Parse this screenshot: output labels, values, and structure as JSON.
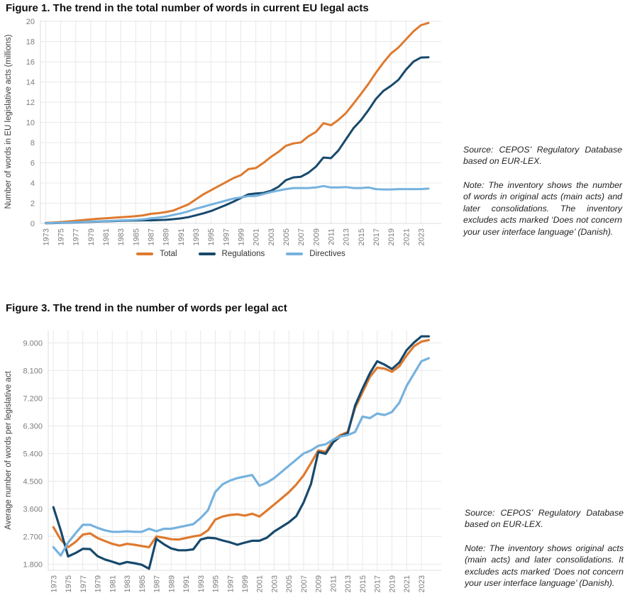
{
  "figures": [
    {
      "title": "Figure 1. The trend in the total number of words in current EU legal acts",
      "source": "Source: CEPOS’ Regulatory Database based on EUR-LEX.",
      "note": "Note: The inventory shows the number of words in original acts (main acts) and later consolidations. The inventory excludes acts marked ‘Does not concern your user interface language’ (Danish)."
    },
    {
      "title": "Figure 3. The trend in the number of words per legal act",
      "source": "Source: CEPOS’ Regulatory Database based on EUR-LEX.",
      "note": "Note: The inventory shows original acts (main acts) and later consolidations. It excludes acts marked ‘Does not concern your user interface language’ (Danish)."
    }
  ],
  "chart_data": [
    {
      "type": "line",
      "title": "Figure 1. The trend in the total number of words in current EU legal acts",
      "xlabel": "",
      "ylabel": "Number of words in EU legislative acts (millions)",
      "x_start_year": 1973,
      "x_end_year": 2024,
      "xlim": [
        1972.3,
        2025.7
      ],
      "ylim": [
        0,
        20.15
      ],
      "grid": true,
      "legend_position": "bottom",
      "xtick_labels": [
        "1973",
        "1975",
        "1977",
        "1979",
        "1981",
        "1983",
        "1985",
        "1987",
        "1989",
        "1991",
        "1993",
        "1995",
        "1997",
        "1999",
        "2001",
        "2003",
        "2005",
        "2007",
        "2009",
        "2011",
        "2013",
        "2015",
        "2017",
        "2019",
        "2021",
        "2023"
      ],
      "ytick_values": [
        0,
        2,
        4,
        6,
        8,
        10,
        12,
        14,
        16,
        18,
        20
      ],
      "ytick_labels": [
        "0",
        "2",
        "4",
        "6",
        "8",
        "10",
        "12",
        "14",
        "16",
        "18",
        "20"
      ],
      "series": [
        {
          "name": "Total",
          "color": "#DE7A2F",
          "values": [
            0.05,
            0.09,
            0.13,
            0.19,
            0.26,
            0.33,
            0.4,
            0.46,
            0.51,
            0.56,
            0.61,
            0.66,
            0.72,
            0.8,
            0.95,
            1.02,
            1.12,
            1.28,
            1.58,
            1.88,
            2.38,
            2.88,
            3.28,
            3.68,
            4.08,
            4.48,
            4.78,
            5.38,
            5.48,
            5.98,
            6.58,
            7.08,
            7.68,
            7.92,
            8.02,
            8.62,
            9.05,
            9.92,
            9.72,
            10.25,
            10.92,
            11.85,
            12.82,
            13.82,
            14.92,
            15.92,
            16.82,
            17.42,
            18.22,
            19.02,
            19.62,
            19.85
          ]
        },
        {
          "name": "Regulations",
          "color": "#17496C",
          "values": [
            0.02,
            0.03,
            0.05,
            0.07,
            0.1,
            0.13,
            0.16,
            0.18,
            0.21,
            0.23,
            0.26,
            0.28,
            0.29,
            0.31,
            0.31,
            0.33,
            0.36,
            0.42,
            0.5,
            0.62,
            0.8,
            1.0,
            1.22,
            1.52,
            1.82,
            2.15,
            2.52,
            2.88,
            2.96,
            3.02,
            3.22,
            3.62,
            4.28,
            4.56,
            4.62,
            5.02,
            5.62,
            6.52,
            6.46,
            7.22,
            8.32,
            9.42,
            10.22,
            11.22,
            12.32,
            13.12,
            13.62,
            14.22,
            15.22,
            16.02,
            16.42,
            16.45
          ]
        },
        {
          "name": "Directives",
          "color": "#76B2DE",
          "values": [
            0.02,
            0.04,
            0.06,
            0.09,
            0.12,
            0.15,
            0.18,
            0.21,
            0.24,
            0.27,
            0.3,
            0.32,
            0.35,
            0.4,
            0.5,
            0.58,
            0.68,
            0.84,
            1.0,
            1.2,
            1.45,
            1.65,
            1.86,
            2.06,
            2.26,
            2.46,
            2.58,
            2.7,
            2.72,
            2.9,
            3.1,
            3.26,
            3.4,
            3.5,
            3.5,
            3.5,
            3.56,
            3.7,
            3.56,
            3.56,
            3.6,
            3.5,
            3.5,
            3.56,
            3.4,
            3.36,
            3.36,
            3.4,
            3.4,
            3.4,
            3.4,
            3.45
          ]
        }
      ]
    },
    {
      "type": "line",
      "title": "Figure 3. The trend in the number of words per legal act",
      "xlabel": "",
      "ylabel": "Average number of words per legislative act",
      "x_start_year": 1973,
      "x_end_year": 2024,
      "xlim": [
        1972.3,
        2025.7
      ],
      "ylim": [
        1600,
        9400
      ],
      "grid": true,
      "legend_position": "none",
      "xtick_labels": [
        "1973",
        "1975",
        "1977",
        "1979",
        "1981",
        "1983",
        "1985",
        "1987",
        "1989",
        "1991",
        "1993",
        "1995",
        "1997",
        "1999",
        "2001",
        "2003",
        "2005",
        "2007",
        "2009",
        "2011",
        "2013",
        "2015",
        "2017",
        "2019",
        "2021",
        "2023"
      ],
      "ytick_values": [
        1800,
        2700,
        3600,
        4500,
        5400,
        6300,
        7200,
        8100,
        9000
      ],
      "ytick_labels": [
        "1.800",
        "2.700",
        "3.600",
        "4.500",
        "5.400",
        "6.300",
        "7.200",
        "8.100",
        "9.000"
      ],
      "series": [
        {
          "name": "Total",
          "color": "#DE7A2F",
          "values": [
            3000,
            2600,
            2350,
            2520,
            2760,
            2800,
            2650,
            2550,
            2460,
            2400,
            2460,
            2430,
            2390,
            2350,
            2700,
            2660,
            2610,
            2600,
            2650,
            2700,
            2740,
            2900,
            3250,
            3350,
            3400,
            3420,
            3380,
            3440,
            3350,
            3540,
            3740,
            3940,
            4140,
            4390,
            4690,
            5090,
            5500,
            5450,
            5840,
            6000,
            6100,
            6890,
            7390,
            7890,
            8190,
            8160,
            8060,
            8240,
            8590,
            8890,
            9040,
            9090
          ]
        },
        {
          "name": "Regulations",
          "color": "#17496C",
          "values": [
            3650,
            2900,
            2050,
            2160,
            2300,
            2290,
            2060,
            1950,
            1880,
            1800,
            1870,
            1830,
            1780,
            1650,
            2620,
            2450,
            2310,
            2250,
            2250,
            2280,
            2600,
            2660,
            2640,
            2570,
            2510,
            2430,
            2500,
            2560,
            2560,
            2660,
            2860,
            3010,
            3160,
            3360,
            3810,
            4410,
            5450,
            5390,
            5760,
            5960,
            6060,
            6960,
            7510,
            8010,
            8400,
            8290,
            8150,
            8360,
            8760,
            9010,
            9210,
            9210
          ]
        },
        {
          "name": "Directives",
          "color": "#76B2DE",
          "values": [
            2350,
            2080,
            2500,
            2800,
            3080,
            3080,
            2980,
            2900,
            2850,
            2850,
            2870,
            2850,
            2850,
            2950,
            2870,
            2950,
            2950,
            3000,
            3050,
            3100,
            3300,
            3550,
            4150,
            4400,
            4520,
            4600,
            4650,
            4700,
            4350,
            4450,
            4600,
            4800,
            5000,
            5200,
            5400,
            5500,
            5650,
            5700,
            5850,
            5950,
            6000,
            6100,
            6600,
            6550,
            6700,
            6650,
            6750,
            7050,
            7600,
            8000,
            8400,
            8500
          ]
        }
      ]
    }
  ],
  "style": {
    "grid_color": "#e8e8e8",
    "axis_edge_color": "#dcdcdc",
    "tick_text_color": "#7d7d7d"
  }
}
